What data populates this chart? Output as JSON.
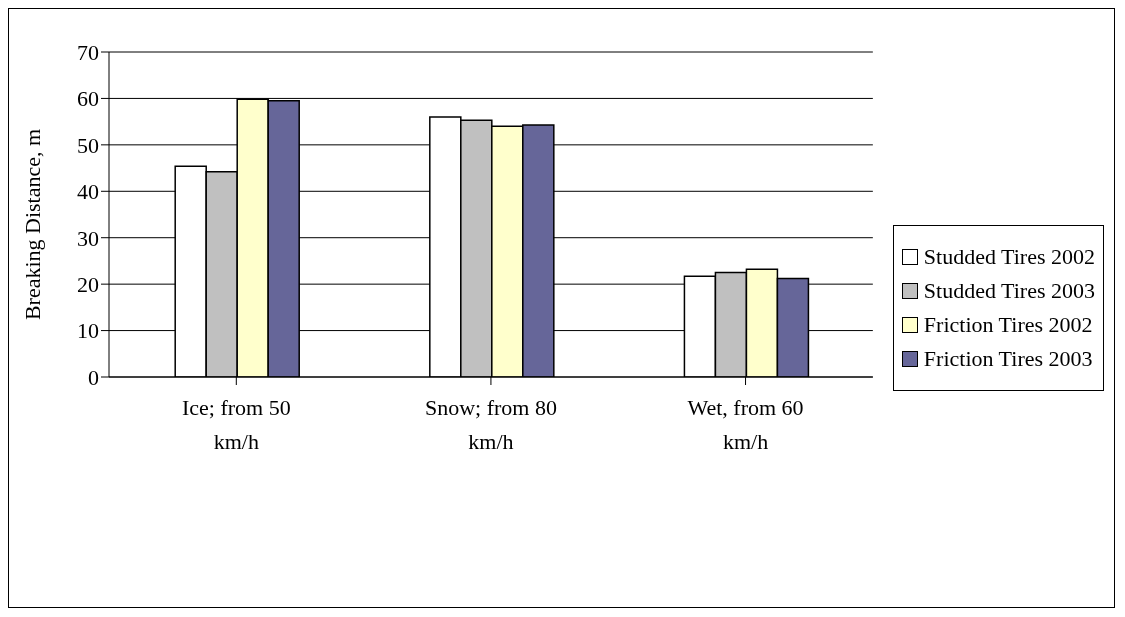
{
  "chart_data": {
    "type": "bar",
    "ylabel": "Breaking Distance, m",
    "categories": [
      "Ice; from 50 km/h",
      "Snow; from 80 km/h",
      "Wet, from 60 km/h"
    ],
    "series": [
      {
        "name": "Studded Tires 2002",
        "color": "#ffffff",
        "values": [
          45.4,
          56.0,
          21.7
        ]
      },
      {
        "name": "Studded Tires 2003",
        "color": "#c0c0c0",
        "values": [
          44.2,
          55.3,
          22.5
        ]
      },
      {
        "name": "Friction Tires 2002",
        "color": "#ffffcc",
        "values": [
          59.8,
          54.0,
          23.2
        ]
      },
      {
        "name": "Friction Tires 2003",
        "color": "#666699",
        "values": [
          59.5,
          54.3,
          21.2
        ]
      }
    ],
    "ylim": [
      0,
      70
    ],
    "yticks": [
      0,
      10,
      20,
      30,
      40,
      50,
      60,
      70
    ],
    "grid": "y",
    "legend": "right"
  }
}
